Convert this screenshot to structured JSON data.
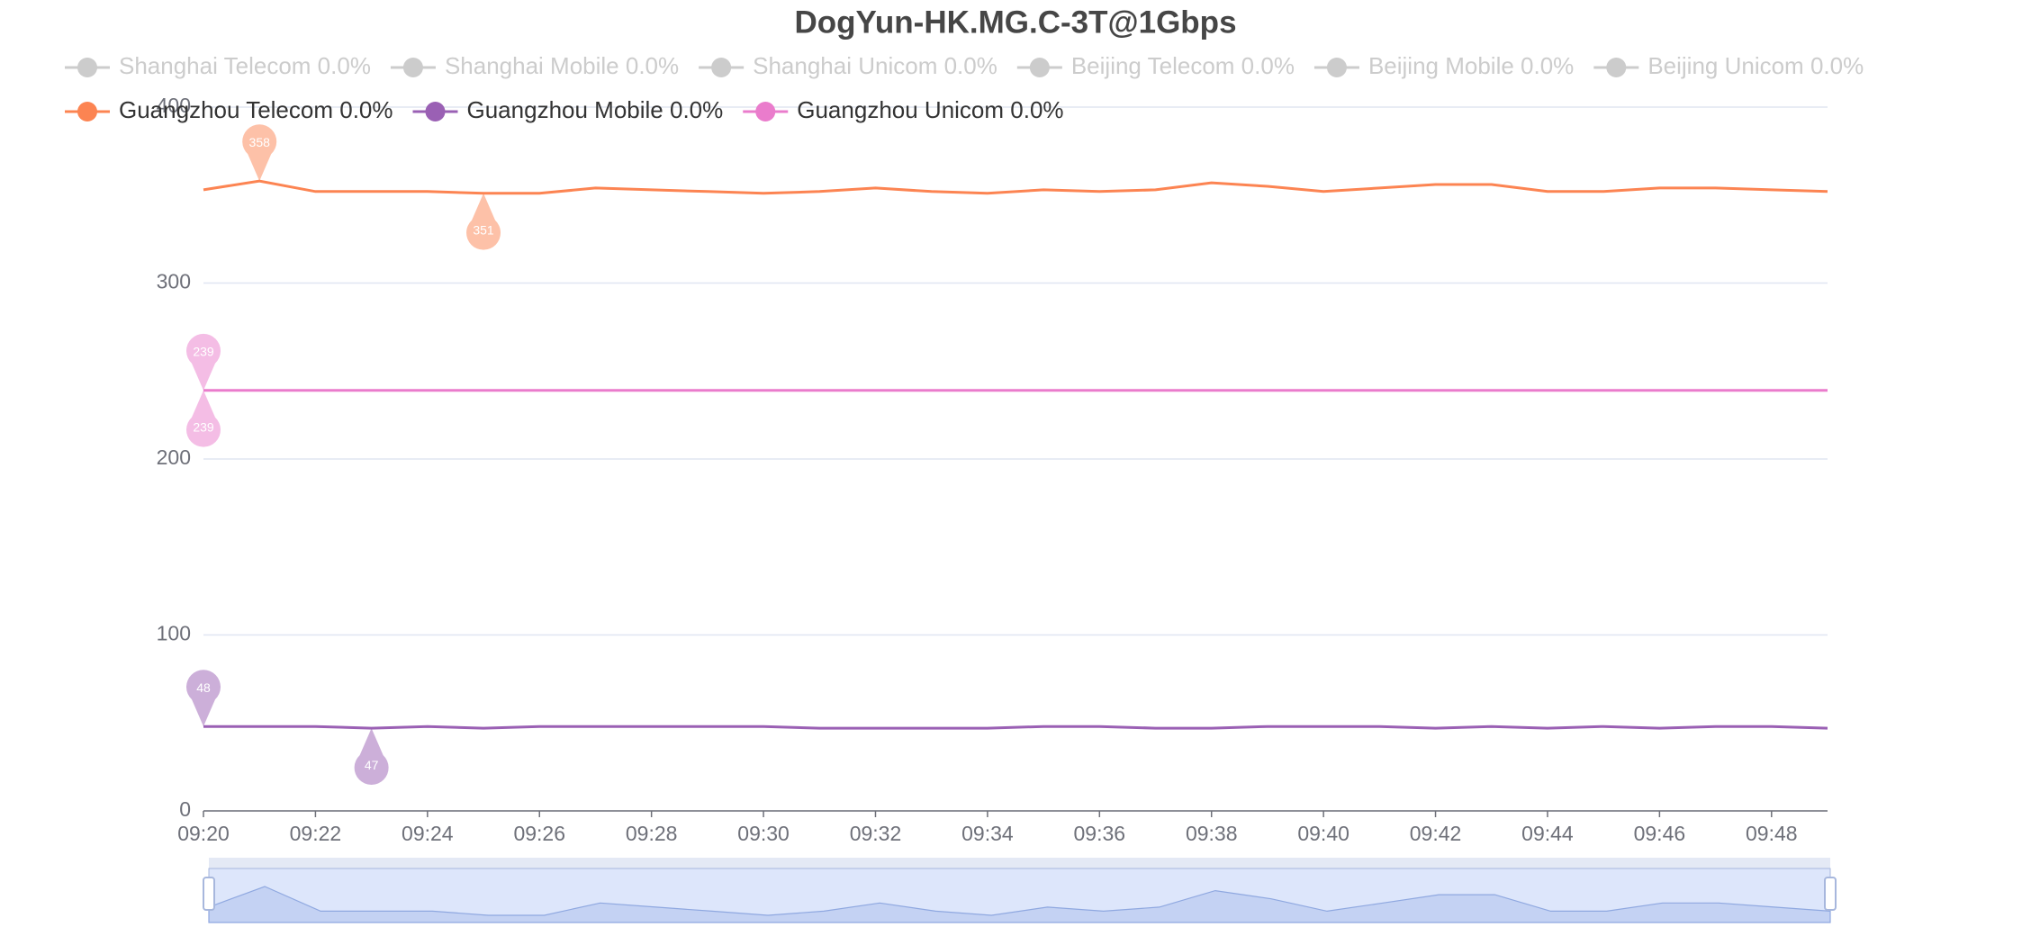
{
  "chart_data": {
    "type": "line",
    "title": "DogYun-HK.MG.C-3T@1Gbps",
    "x": [
      "09:20",
      "09:21",
      "09:22",
      "09:23",
      "09:24",
      "09:25",
      "09:26",
      "09:27",
      "09:28",
      "09:29",
      "09:30",
      "09:31",
      "09:32",
      "09:33",
      "09:34",
      "09:35",
      "09:36",
      "09:37",
      "09:38",
      "09:39",
      "09:40",
      "09:41",
      "09:42",
      "09:43",
      "09:44",
      "09:45",
      "09:46",
      "09:47",
      "09:48",
      "09:49"
    ],
    "xticks": [
      "09:20",
      "09:22",
      "09:24",
      "09:26",
      "09:28",
      "09:30",
      "09:32",
      "09:34",
      "09:36",
      "09:38",
      "09:40",
      "09:42",
      "09:44",
      "09:46",
      "09:48"
    ],
    "ylim": [
      0,
      400
    ],
    "yticks": [
      0,
      100,
      200,
      300,
      400
    ],
    "grid": true,
    "mark_point": [
      "max",
      "min"
    ],
    "inactive_color": "#cccccc",
    "series": [
      {
        "name": "Shanghai Telecom 0.0%",
        "color": "#5470c6",
        "hidden": true
      },
      {
        "name": "Shanghai Mobile 0.0%",
        "color": "#91cc75",
        "hidden": true
      },
      {
        "name": "Shanghai Unicom 0.0%",
        "color": "#fac858",
        "hidden": true
      },
      {
        "name": "Beijing Telecom 0.0%",
        "color": "#ee6666",
        "hidden": true
      },
      {
        "name": "Beijing Mobile 0.0%",
        "color": "#73c0de",
        "hidden": true
      },
      {
        "name": "Beijing Unicom 0.0%",
        "color": "#3ba272",
        "hidden": true
      },
      {
        "name": "Guangzhou Telecom 0.0%",
        "color": "#fc8452",
        "values": [
          353,
          358,
          352,
          352,
          352,
          351,
          351,
          354,
          353,
          352,
          351,
          352,
          354,
          352,
          351,
          353,
          352,
          353,
          357,
          355,
          352,
          354,
          356,
          356,
          352,
          352,
          354,
          354,
          353,
          352
        ]
      },
      {
        "name": "Guangzhou Mobile 0.0%",
        "color": "#9a60b4",
        "values": [
          48,
          48,
          48,
          47,
          48,
          47,
          48,
          48,
          48,
          48,
          48,
          47,
          47,
          47,
          47,
          48,
          48,
          47,
          47,
          48,
          48,
          48,
          47,
          48,
          47,
          48,
          47,
          48,
          48,
          47
        ]
      },
      {
        "name": "Guangzhou Unicom 0.0%",
        "color": "#ea7ccc",
        "values": [
          239,
          239,
          239,
          239,
          239,
          239,
          239,
          239,
          239,
          239,
          239,
          239,
          239,
          239,
          239,
          239,
          239,
          239,
          239,
          239,
          239,
          239,
          239,
          239,
          239,
          239,
          239,
          239,
          239,
          239
        ]
      }
    ]
  }
}
